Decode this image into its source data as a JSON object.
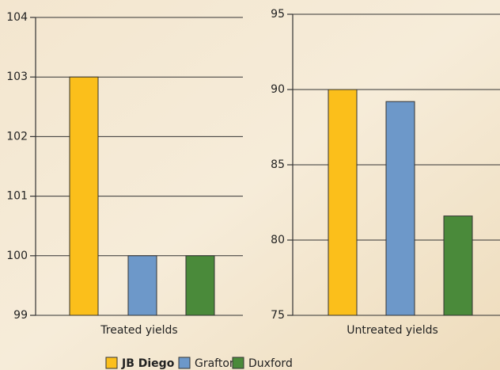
{
  "legend": [
    {
      "name": "JB Diego",
      "color": "#fbbf1b"
    },
    {
      "name": "Grafton",
      "color": "#6d98c9"
    },
    {
      "name": "Duxford",
      "color": "#4a8a3a"
    }
  ],
  "chart_data": [
    {
      "type": "bar",
      "xlabel": "Treated yields",
      "values": [
        103,
        100,
        100
      ],
      "ylim": [
        99,
        104
      ],
      "yticks": [
        99,
        100,
        101,
        102,
        103,
        104
      ],
      "grid": true
    },
    {
      "type": "bar",
      "xlabel": "Untreated yields",
      "values": [
        90,
        89.2,
        81.6
      ],
      "ylim": [
        75,
        95
      ],
      "yticks": [
        75,
        80,
        85,
        90,
        95
      ],
      "grid": true
    }
  ]
}
